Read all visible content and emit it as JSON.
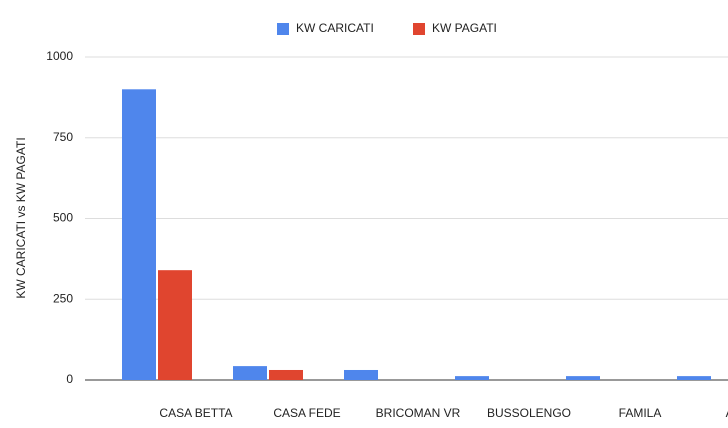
{
  "chart_data": {
    "type": "bar",
    "y_label": "KW CARICATI vs KW PAGATI",
    "categories": [
      "CASA BETTA",
      "CASA FEDE",
      "BRICOMAN VR",
      "BUSSOLENGO",
      "FAMILA",
      "AUCHAN"
    ],
    "series": [
      {
        "name": "KW CARICATI",
        "color": "#4f86ec",
        "values": [
          900,
          43,
          31,
          12,
          12,
          12
        ]
      },
      {
        "name": "KW PAGATI",
        "color": "#e0452f",
        "values": [
          340,
          31,
          0,
          0,
          0,
          0
        ]
      }
    ],
    "ylim": [
      0,
      1000
    ],
    "yticks": [
      0,
      250,
      500,
      750,
      1000
    ],
    "grid": true
  }
}
